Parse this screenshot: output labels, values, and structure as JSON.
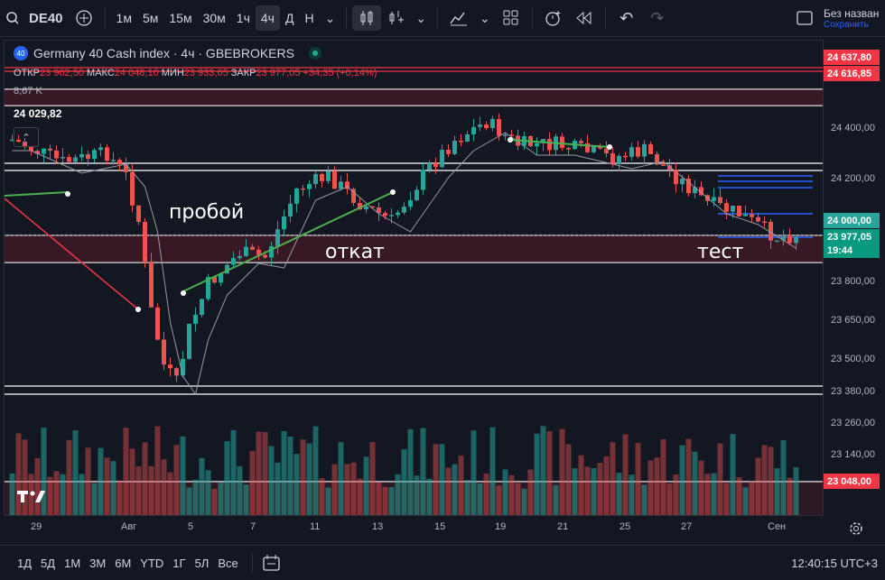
{
  "toolbar": {
    "symbol": "DE40",
    "timeframes": [
      "1м",
      "5м",
      "15м",
      "30м",
      "1ч",
      "4ч",
      "Д",
      "Н"
    ],
    "active_timeframe": "4ч",
    "account_title": "Без назван",
    "account_sub": "Сохранить"
  },
  "legend": {
    "title": "Germany 40 Cash index · 4ч · GBEBROKERS",
    "badge": "40",
    "open_label": "ОТКР",
    "open": "23 962,50",
    "high_label": "МАКС",
    "high": "24 048,10",
    "low_label": "МИН",
    "low": "23 933,65",
    "close_label": "ЗАКР",
    "close": "23 977,05",
    "change": "+34,35 (+0,14%)",
    "volume": "8,67 K",
    "left_price": "24 029,82"
  },
  "annotations": {
    "breakout": "пробой",
    "pullback": "откат",
    "test": "тест"
  },
  "price_scale": {
    "labels": [
      "24 400,00",
      "24 200,00",
      "23 800,00",
      "23 650,00",
      "23 500,00",
      "23 380,00",
      "23 260,00",
      "23 140,00"
    ],
    "tags": [
      {
        "text": "24 637,80",
        "color": "#f23645"
      },
      {
        "text": "24 616,85",
        "color": "#f23645"
      },
      {
        "text": "24 000,00",
        "color": "#26a69a"
      },
      {
        "text": "23 977,05",
        "color": "#089981"
      },
      {
        "text": "19:44",
        "color": "#089981"
      },
      {
        "text": "23 048,00",
        "color": "#f23645"
      }
    ]
  },
  "time_scale": {
    "labels": [
      "29",
      "Авг",
      "5",
      "7",
      "11",
      "13",
      "15",
      "19",
      "21",
      "25",
      "27",
      "Сен"
    ]
  },
  "bottom": {
    "ranges": [
      "1Д",
      "5Д",
      "1М",
      "3М",
      "6М",
      "YTD",
      "1Г",
      "5Л",
      "Все"
    ],
    "clock": "12:40:15 UTC+3"
  }
}
